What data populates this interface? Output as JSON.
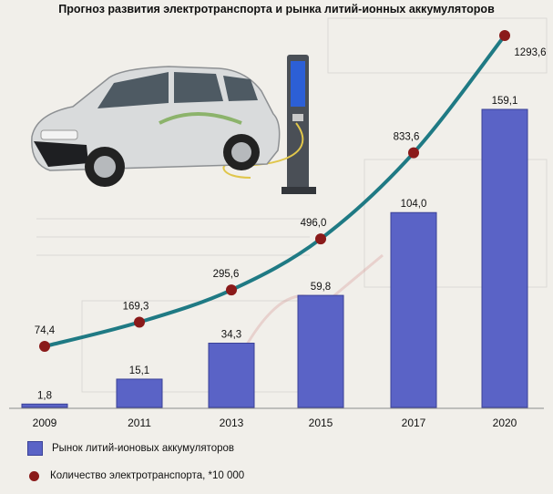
{
  "chart_data": {
    "type": "bar",
    "title": "Прогноз развития электротранспорта и рынка литий-ионных аккумуляторов",
    "categories": [
      "2009",
      "2011",
      "2013",
      "2015",
      "2017",
      "2020"
    ],
    "series": [
      {
        "name": "Рынок литий-ионовых аккумуляторов",
        "type": "bar",
        "values": [
          1.8,
          15.1,
          34.3,
          59.8,
          104.0,
          159.1
        ],
        "labels": [
          "1,8",
          "15,1",
          "34,3",
          "59,8",
          "104,0",
          "159,1"
        ]
      },
      {
        "name": "Количество электротранспорта, *10 000",
        "type": "line",
        "values": [
          74.4,
          169.3,
          295.6,
          496.0,
          833.6,
          1293.6
        ],
        "labels": [
          "74,4",
          "169,3",
          "295,6",
          "496,0",
          "833,6",
          "1293,6"
        ]
      }
    ],
    "xlabel": "",
    "ylabel": "",
    "legend_position": "bottom-left",
    "colors": {
      "bar": "#5a63c6",
      "bar_dark": "#3b4297",
      "line": "#1f7a84",
      "marker": "#8a1a1a"
    }
  }
}
